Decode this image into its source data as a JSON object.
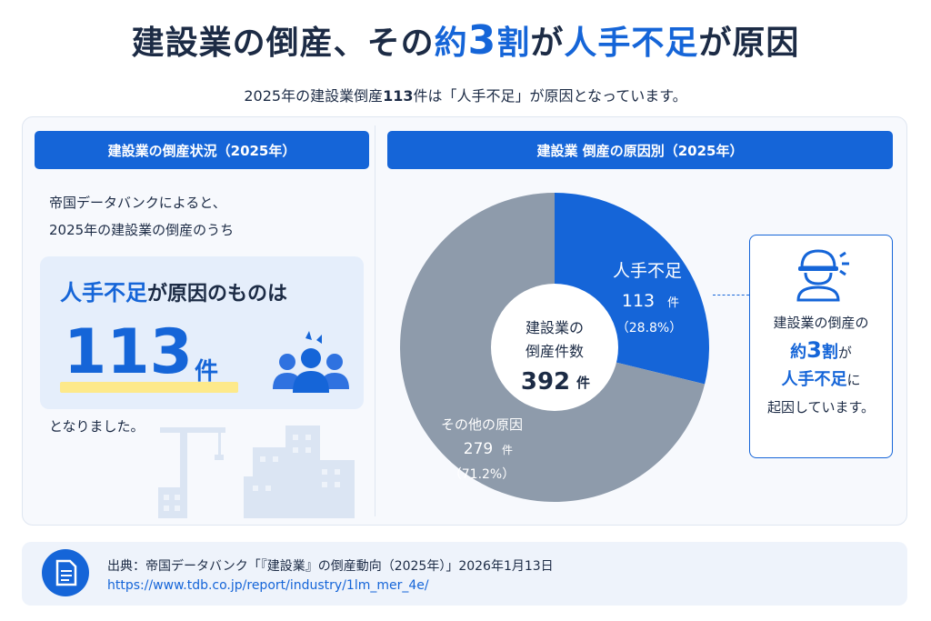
{
  "header": {
    "title_part1": "建設業の倒産、その",
    "title_accent1": "約",
    "title_accent_big": "3",
    "title_accent2": "割",
    "title_part2": "が",
    "title_accent3": "人手不足",
    "title_part3": "が原因",
    "subtitle_pre": "2025年の建設業倒産",
    "subtitle_num": "113",
    "subtitle_post": "件は「人手不足」が原因となっています。"
  },
  "left_panel": {
    "heading": "建設業の倒産状況（2025年）",
    "intro_line1": "帝国データバンクによると、",
    "intro_line2": "2025年の建設業の倒産のうち",
    "highlight_accent": "人手不足",
    "highlight_rest": "が原因のものは",
    "highlight_number": "113",
    "highlight_unit": "件",
    "outro": "となりました。"
  },
  "right_panel": {
    "heading": "建設業 倒産の原因別（2025年）",
    "center_line1": "建設業の",
    "center_line2": "倒産件数",
    "center_number": "392",
    "center_unit": "件",
    "slice1_label": "人手不足",
    "slice1_count": "113",
    "slice1_unit": "件",
    "slice1_pct": "（28.8%）",
    "slice2_label": "その他の原因",
    "slice2_count": "279",
    "slice2_unit": "件",
    "slice2_pct": "（71.2%）",
    "callout_line1": "建設業の倒産の",
    "callout_accent1": "約",
    "callout_accent_big": "3",
    "callout_accent2": "割",
    "callout_line2_rest": "が",
    "callout_accent3": "人手不足",
    "callout_line3_rest": "に",
    "callout_line4": "起因しています。"
  },
  "source": {
    "line1": "出典：帝国データバンク「『建設業』の倒産動向（2025年）」2026年1月13日",
    "url": "https://www.tdb.co.jp/report/industry/1lm_mer_4e/"
  },
  "colors": {
    "accent": "#1565d8",
    "other": "#8e9bab",
    "highlight": "#fde98a"
  },
  "icons": [
    "people-icon",
    "worker-helmet-icon",
    "document-icon",
    "construction-crane-icon"
  ],
  "chart_data": {
    "type": "pie",
    "title": "建設業 倒産の原因別（2025年）",
    "total": 392,
    "categories": [
      "人手不足",
      "その他の原因"
    ],
    "values": [
      113,
      279
    ],
    "percentages": [
      28.8,
      71.2
    ],
    "colors": [
      "#1565d8",
      "#8e9bab"
    ],
    "style": "donut"
  }
}
